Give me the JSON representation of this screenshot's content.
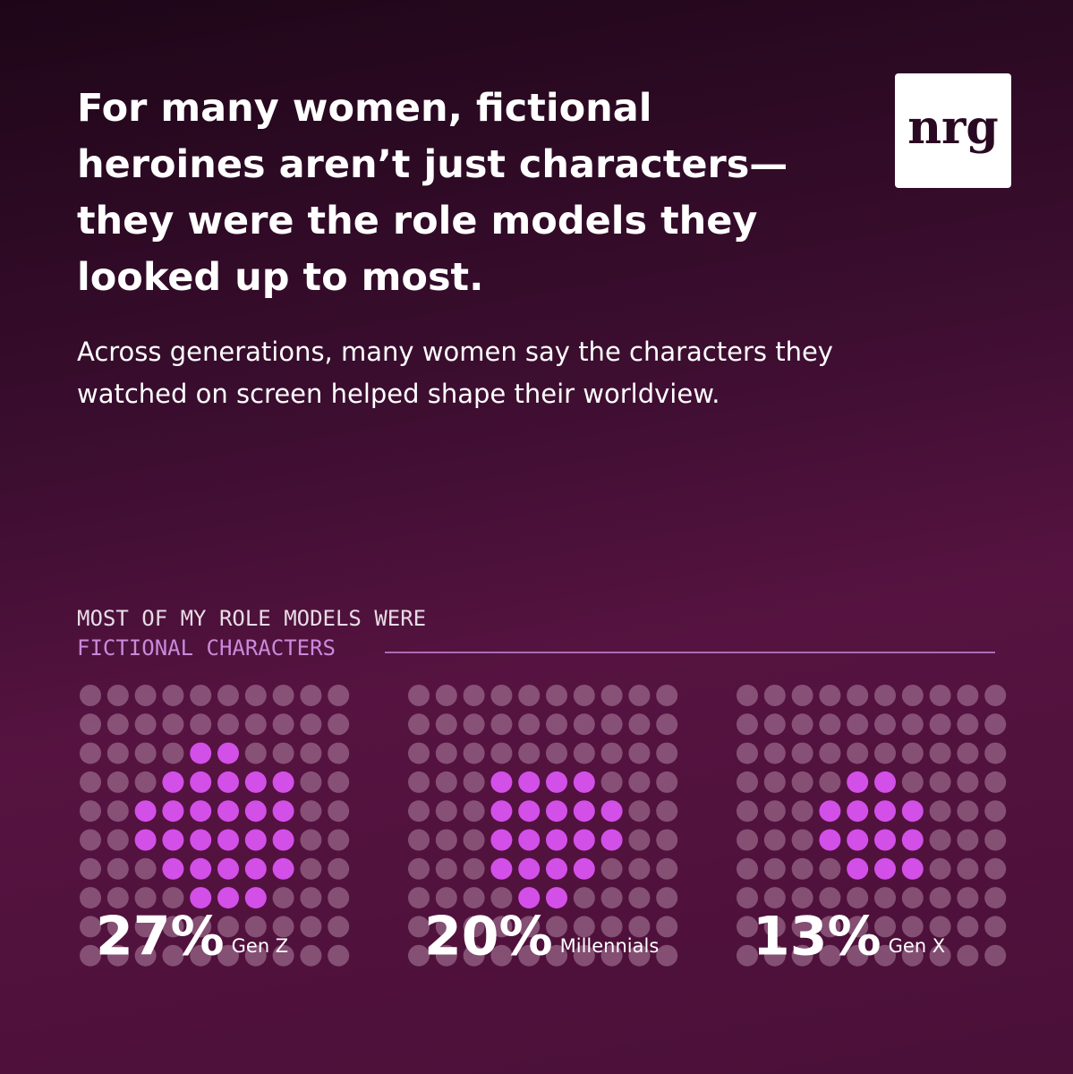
{
  "header": {
    "title": "For many women, fictional heroines aren’t just characters—they were the role models they looked up to most.",
    "subtitle": "Across generations, many women say the characters they watched on screen helped shape their worldview.",
    "logo": "nrg"
  },
  "chart_data": {
    "type": "waffle",
    "title": "MOST OF MY ROLE MODELS WERE",
    "subtitle": "FICTIONAL CHARACTERS",
    "categories": [
      "Gen Z",
      "Millennials",
      "Gen X"
    ],
    "values": [
      27,
      20,
      13
    ],
    "value_labels": [
      "27%",
      "20%",
      "13%"
    ],
    "color": "#d24fe8"
  }
}
